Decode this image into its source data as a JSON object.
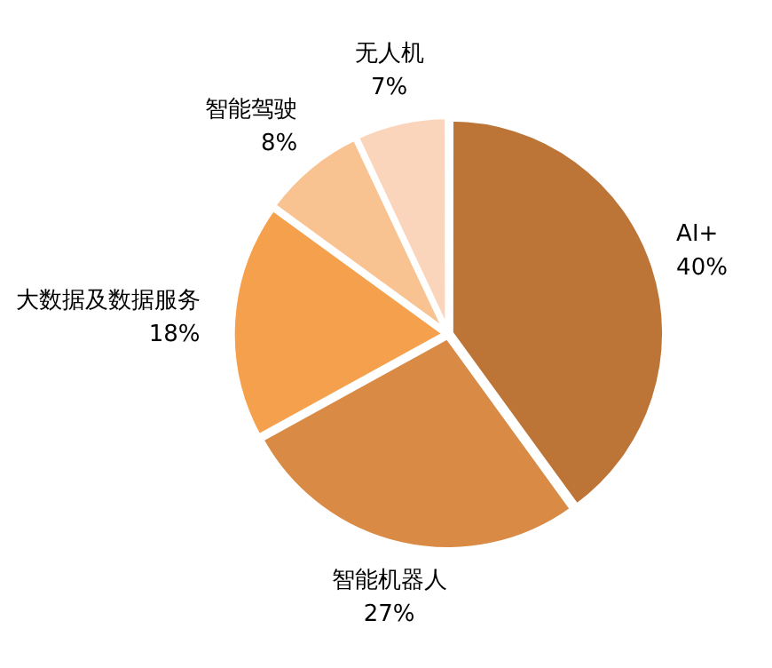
{
  "chart_data": {
    "type": "pie",
    "categories": [
      "AI+",
      "智能机器人",
      "大数据及数据服务",
      "智能驾驶",
      "无人机"
    ],
    "values": [
      40,
      27,
      18,
      8,
      7
    ],
    "colors": [
      "#bd7537",
      "#d98a45",
      "#f5a04c",
      "#f8c391",
      "#fbd5bb"
    ],
    "value_labels": [
      "40%",
      "27%",
      "18%",
      "8%",
      "7%"
    ],
    "legend": false
  }
}
